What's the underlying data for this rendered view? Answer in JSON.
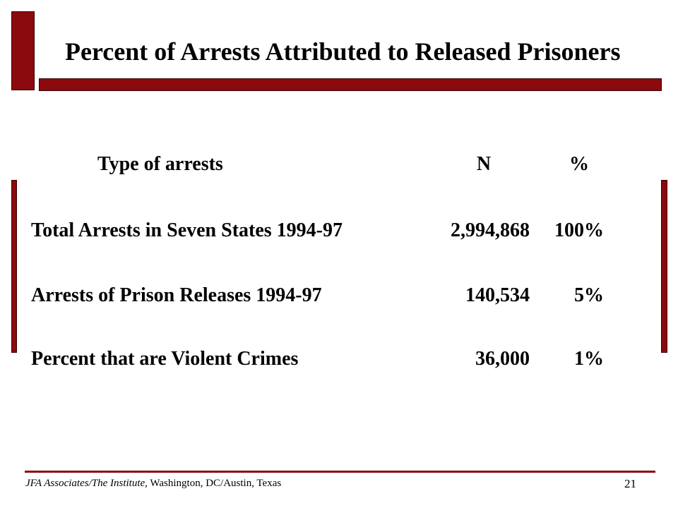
{
  "slide": {
    "title": "Percent of Arrests Attributed to Released Prisoners",
    "table": {
      "headers": {
        "type": "Type of arrests",
        "n": "N",
        "pct": "%"
      },
      "rows": [
        {
          "label": "Total Arrests in Seven States 1994-97",
          "n": "2,994,868",
          "pct": "100%"
        },
        {
          "label": "Arrests of Prison Releases 1994-97",
          "n": "140,534",
          "pct": "5%"
        },
        {
          "label": "Percent that are Violent Crimes",
          "n": "36,000",
          "pct": "1%"
        }
      ]
    },
    "footer": {
      "org": "JFA Associates/The Institute",
      "location": ", Washington, DC/Austin, Texas",
      "page_number": "21"
    }
  },
  "colors": {
    "accent": "#8b0a0e",
    "text": "#000000",
    "background": "#ffffff"
  }
}
